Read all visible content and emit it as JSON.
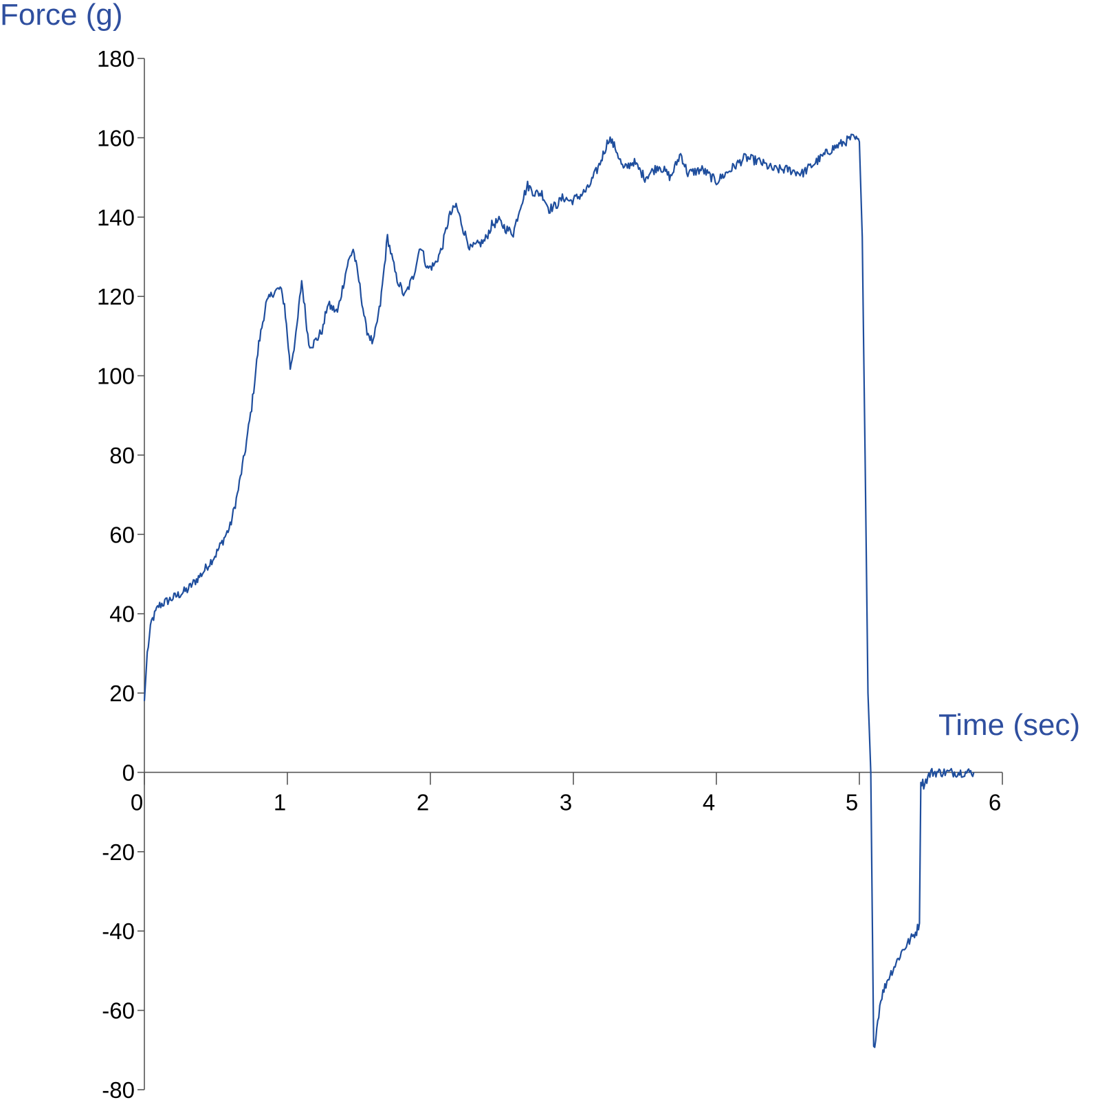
{
  "chart_data": {
    "type": "line",
    "xlabel": "Time (sec)",
    "ylabel": "Force (g)",
    "xlim": [
      0,
      6
    ],
    "ylim": [
      -80,
      180
    ],
    "xticks": [
      "0",
      "1",
      "2",
      "3",
      "4",
      "5",
      "6"
    ],
    "yticks": [
      "180",
      "160",
      "140",
      "120",
      "100",
      "80",
      "60",
      "40",
      "20",
      "0",
      "-20",
      "-40",
      "-60",
      "-80"
    ],
    "grid": false,
    "line_color": "#1f4e9d",
    "series": [
      {
        "x": [
          0.0,
          0.02,
          0.05,
          0.1,
          0.15,
          0.2,
          0.3,
          0.4,
          0.5,
          0.6,
          0.65,
          0.7,
          0.75,
          0.8,
          0.85,
          0.9,
          0.95,
          0.98,
          1.02,
          1.06,
          1.1,
          1.15,
          1.18,
          1.22,
          1.25,
          1.28,
          1.35,
          1.42,
          1.46,
          1.5,
          1.55,
          1.6,
          1.65,
          1.7,
          1.76,
          1.82,
          1.88,
          1.93,
          1.98,
          2.03,
          2.08,
          2.13,
          2.18,
          2.23,
          2.28,
          2.33,
          2.38,
          2.43,
          2.48,
          2.53,
          2.58,
          2.63,
          2.68,
          2.73,
          2.78,
          2.83,
          2.88,
          2.93,
          2.98,
          3.03,
          3.1,
          3.18,
          3.25,
          3.3,
          3.35,
          3.42,
          3.5,
          3.6,
          3.68,
          3.75,
          3.8,
          3.9,
          4.0,
          4.1,
          4.2,
          4.3,
          4.4,
          4.5,
          4.6,
          4.7,
          4.8,
          4.9,
          4.95,
          5.0,
          5.02,
          5.04,
          5.06,
          5.08,
          5.1,
          5.15,
          5.2,
          5.3,
          5.4,
          5.42,
          5.43,
          5.45,
          5.5,
          5.6,
          5.7,
          5.8
        ],
        "y": [
          18,
          30,
          38,
          42,
          43,
          44,
          46,
          50,
          55,
          62,
          70,
          80,
          92,
          108,
          118,
          121,
          122,
          118,
          102,
          110,
          124,
          108,
          108,
          110,
          112,
          118,
          116,
          128,
          132,
          124,
          112,
          108,
          118,
          135,
          125,
          120,
          125,
          133,
          127,
          128,
          132,
          140,
          143,
          137,
          132,
          133,
          134,
          138,
          139,
          137,
          136,
          143,
          148,
          146,
          146,
          142,
          143,
          145,
          144,
          145,
          147,
          153,
          160,
          157,
          152,
          154,
          150,
          153,
          150,
          156,
          151,
          152,
          149,
          152,
          155,
          154,
          152,
          152,
          151,
          154,
          157,
          159,
          160,
          159,
          135,
          80,
          20,
          0,
          -70,
          -57,
          -52,
          -45,
          -40,
          -38,
          -2,
          -3,
          0,
          0,
          0,
          0
        ]
      }
    ]
  }
}
